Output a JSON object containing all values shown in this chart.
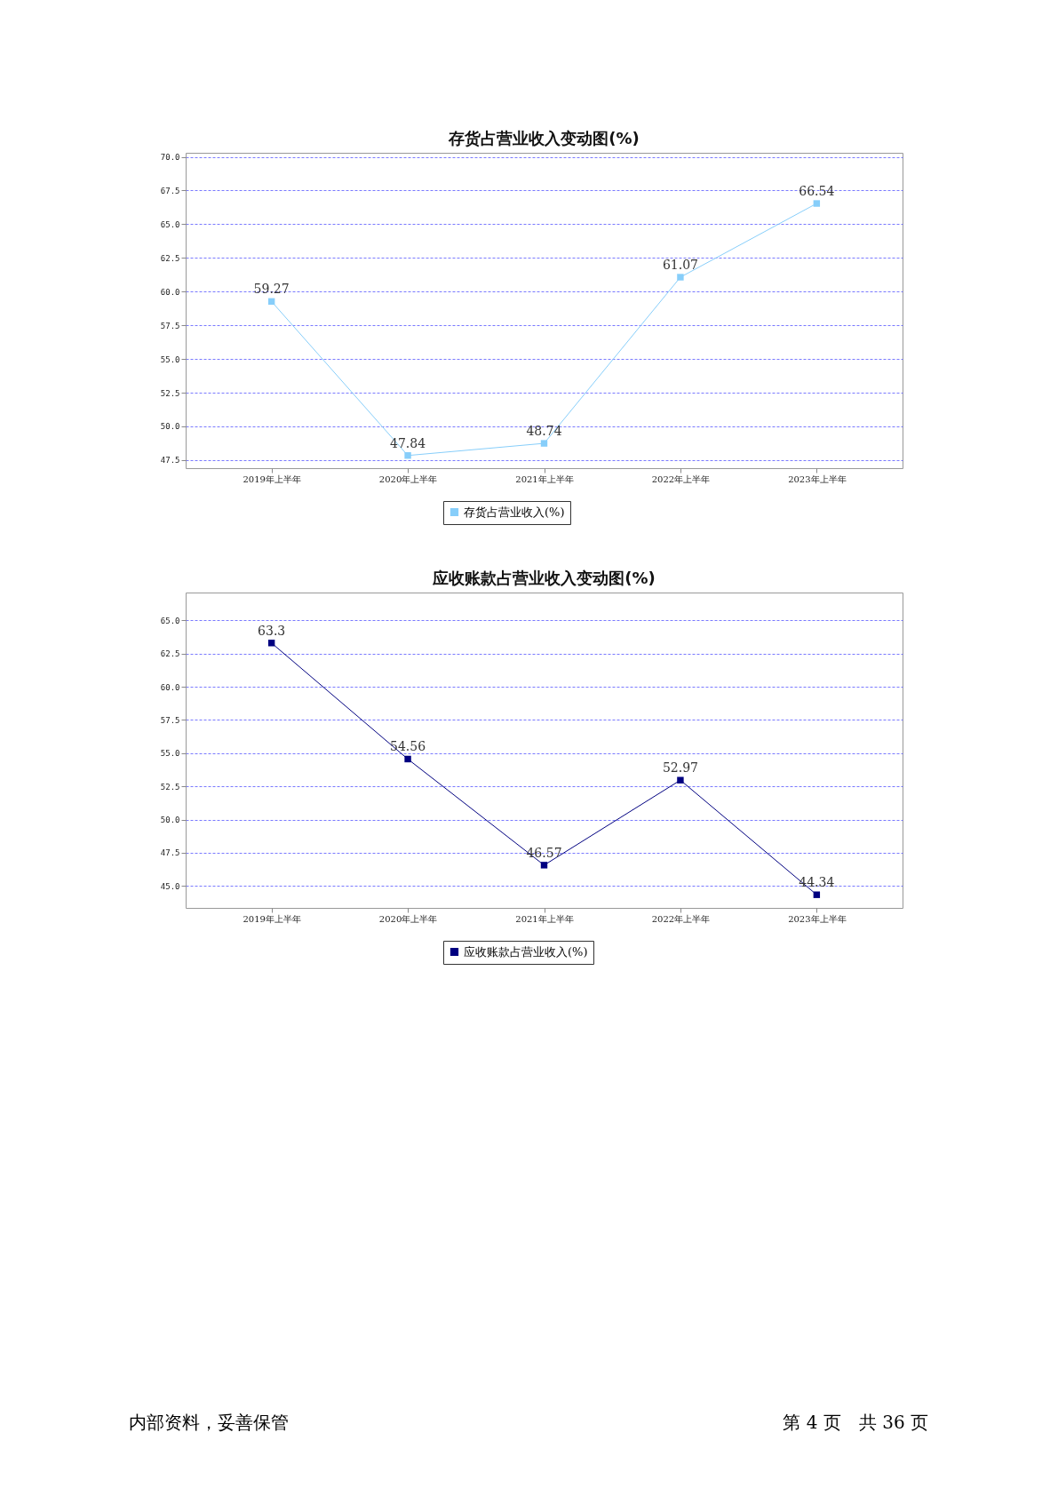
{
  "chart_data": [
    {
      "type": "line",
      "title": "存货占营业收入变动图(%)",
      "categories": [
        "2019年上半年",
        "2020年上半年",
        "2021年上半年",
        "2022年上半年",
        "2023年上半年"
      ],
      "series": [
        {
          "name": "存货占营业收入(%)",
          "color": "#87cefa",
          "values": [
            59.27,
            47.84,
            48.74,
            61.07,
            66.54
          ]
        }
      ],
      "ylim": [
        46.9,
        70.3
      ],
      "yticks": [
        {
          "value": 47.5,
          "label": "47.5"
        },
        {
          "value": 50,
          "label": "50.0"
        },
        {
          "value": 52.5,
          "label": "52.5"
        },
        {
          "value": 55,
          "label": "55.0"
        },
        {
          "value": 57.5,
          "label": "57.5"
        },
        {
          "value": 60,
          "label": "60.0"
        },
        {
          "value": 62.5,
          "label": "62.5"
        },
        {
          "value": 65,
          "label": "65.0"
        },
        {
          "value": 67.5,
          "label": "67.5"
        },
        {
          "value": 70,
          "label": "70.0"
        }
      ],
      "grid": "y",
      "legend": "bottom",
      "marker": "square",
      "line_style": "solid",
      "data_labels": true
    },
    {
      "type": "line",
      "title": "应收账款占营业收入变动图(%)",
      "categories": [
        "2019年上半年",
        "2020年上半年",
        "2021年上半年",
        "2022年上半年",
        "2023年上半年"
      ],
      "series": [
        {
          "name": "应收账款占营业收入(%)",
          "color": "#000080",
          "values": [
            63.3,
            54.56,
            46.57,
            52.97,
            44.34
          ]
        }
      ],
      "ylim": [
        43.35,
        67.1
      ],
      "yticks": [
        {
          "value": 45,
          "label": "45.0"
        },
        {
          "value": 47.5,
          "label": "47.5"
        },
        {
          "value": 50,
          "label": "50.0"
        },
        {
          "value": 52.5,
          "label": "52.5"
        },
        {
          "value": 55,
          "label": "55.0"
        },
        {
          "value": 57.5,
          "label": "57.5"
        },
        {
          "value": 60,
          "label": "60.0"
        },
        {
          "value": 62.5,
          "label": "62.5"
        },
        {
          "value": 65,
          "label": "65.0"
        }
      ],
      "grid": "y",
      "legend": "bottom",
      "marker": "square",
      "line_style": "solid",
      "data_labels": true,
      "annotations": [
        "内部资料，妥善保管",
        "第 4 页　共 36 页"
      ]
    }
  ]
}
